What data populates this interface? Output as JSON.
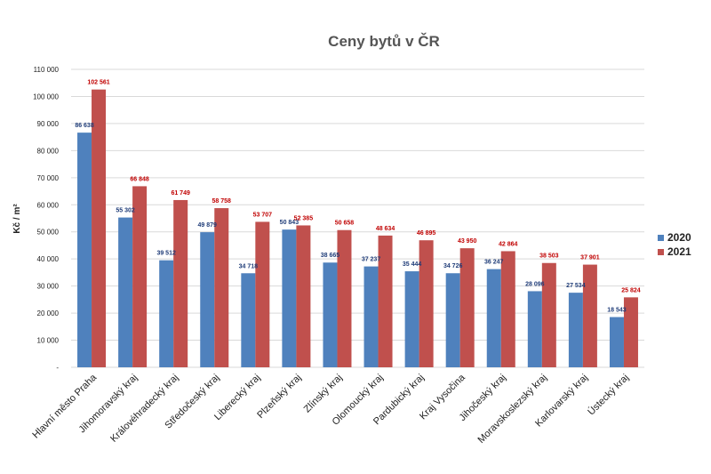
{
  "chart_data": {
    "type": "bar",
    "title": "Ceny bytů v ČR",
    "ylabel": "Kč / m²",
    "xlabel": "",
    "ylim": [
      0,
      110000
    ],
    "yticks": [
      {
        "value": 0,
        "label": "-"
      },
      {
        "value": 10000,
        "label": "10 000"
      },
      {
        "value": 20000,
        "label": "20 000"
      },
      {
        "value": 30000,
        "label": "30 000"
      },
      {
        "value": 40000,
        "label": "40 000"
      },
      {
        "value": 50000,
        "label": "50 000"
      },
      {
        "value": 60000,
        "label": "60 000"
      },
      {
        "value": 70000,
        "label": "70 000"
      },
      {
        "value": 80000,
        "label": "80 000"
      },
      {
        "value": 90000,
        "label": "90 000"
      },
      {
        "value": 100000,
        "label": "100 000"
      },
      {
        "value": 110000,
        "label": "110 000"
      }
    ],
    "grid": true,
    "legend_position": "right",
    "categories": [
      "Hlavní město Praha",
      "Jihomoravský kraj",
      "Královéhradecký kraj",
      "Středočeský kraj",
      "Liberecký kraj",
      "Plzeňský kraj",
      "Zlínský kraj",
      "Olomoucký kraj",
      "Pardubický kraj",
      "Kraj Vysočina",
      "Jihočeský kraj",
      "Moravskoslezský kraj",
      "Karlovarský kraj",
      "Ústecký kraj"
    ],
    "series": [
      {
        "name": "2020",
        "color": "#4f81bd",
        "label_color": "#1f3c78",
        "values": [
          86638,
          55302,
          39512,
          49879,
          34718,
          50843,
          38665,
          37237,
          35444,
          34726,
          36247,
          28096,
          27534,
          18543
        ],
        "labels": [
          "86 638",
          "55 302",
          "39 512",
          "49 879",
          "34 718",
          "50 843",
          "38 665",
          "37 237",
          "35 444",
          "34 726",
          "36 247",
          "28 096",
          "27 534",
          "18 543"
        ]
      },
      {
        "name": "2021",
        "color": "#c0504d",
        "label_color": "#c00000",
        "values": [
          102561,
          66848,
          61749,
          58758,
          53707,
          52385,
          50658,
          48634,
          46895,
          43950,
          42864,
          38503,
          37901,
          25824
        ],
        "labels": [
          "102 561",
          "66 848",
          "61 749",
          "58 758",
          "53 707",
          "52 385",
          "50 658",
          "48 634",
          "46 895",
          "43 950",
          "42 864",
          "38 503",
          "37 901",
          "25 824"
        ]
      }
    ]
  }
}
